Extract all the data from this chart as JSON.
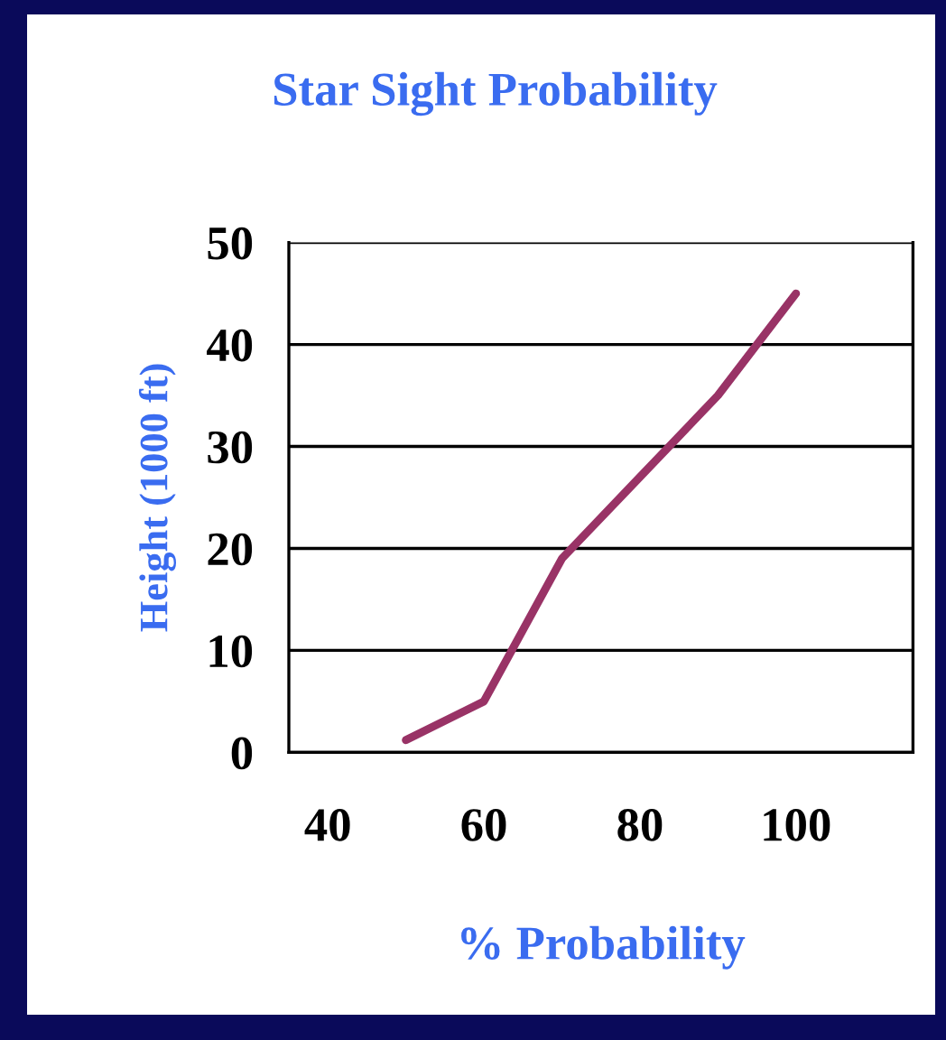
{
  "chart_data": {
    "type": "line",
    "title": "Star Sight Probability",
    "xlabel": "% Probability",
    "ylabel": "Height (1000 ft)",
    "categories": [
      "40",
      null,
      "60",
      null,
      "80",
      null,
      "100",
      null
    ],
    "series": [
      {
        "color": "#993366",
        "values": [
          null,
          1.2,
          5,
          19,
          27,
          35,
          45,
          null
        ]
      }
    ],
    "ylim": [
      0,
      50
    ],
    "yticks": [
      0,
      10,
      20,
      30,
      40,
      50
    ],
    "grid": "y"
  }
}
